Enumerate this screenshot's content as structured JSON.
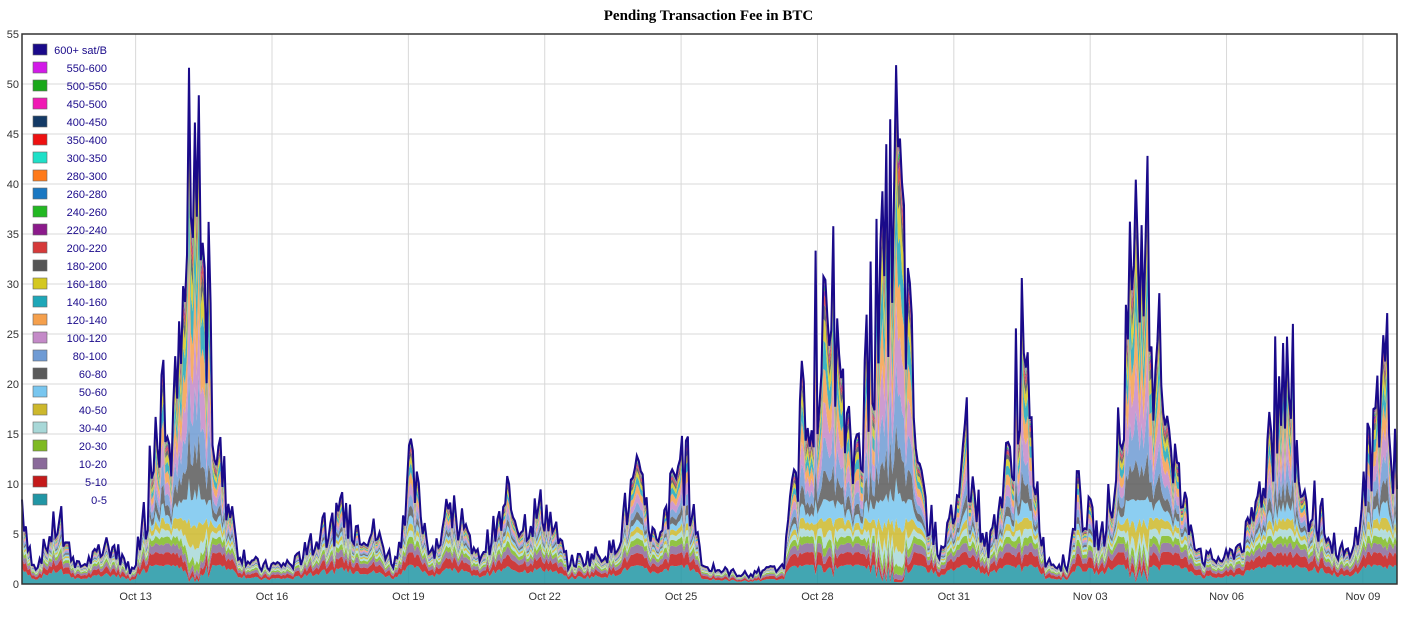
{
  "chart_data": {
    "type": "area",
    "title": "Pending Transaction Fee in BTC",
    "xlabel": "",
    "ylabel": "",
    "ylim": [
      0,
      55
    ],
    "yticks": [
      0,
      5,
      10,
      15,
      20,
      25,
      30,
      35,
      40,
      45,
      50,
      55
    ],
    "x_tick_labels": [
      "Oct 13",
      "Oct 16",
      "Oct 19",
      "Oct 22",
      "Oct 25",
      "Oct 28",
      "Oct 31",
      "Nov 03",
      "Nov 06",
      "Nov 09"
    ],
    "xlim": [
      "Oct 10 12:00",
      "Nov 09 18:00"
    ],
    "grid": true,
    "legend_position": "top-left",
    "stacked": true,
    "series": [
      {
        "name": "0-5",
        "color": "#2196a5"
      },
      {
        "name": "5-10",
        "color": "#c41a1a"
      },
      {
        "name": "10-20",
        "color": "#8a6a9a"
      },
      {
        "name": "20-30",
        "color": "#7fba22"
      },
      {
        "name": "30-40",
        "color": "#a8d8d8"
      },
      {
        "name": "40-50",
        "color": "#cdb82c"
      },
      {
        "name": "50-60",
        "color": "#78c6ef"
      },
      {
        "name": "60-80",
        "color": "#5a5a5a"
      },
      {
        "name": "80-100",
        "color": "#6f9bd4"
      },
      {
        "name": "100-120",
        "color": "#c48ac8"
      },
      {
        "name": "120-140",
        "color": "#f5a04c"
      },
      {
        "name": "140-160",
        "color": "#1ea7b8"
      },
      {
        "name": "160-180",
        "color": "#d4c820"
      },
      {
        "name": "180-200",
        "color": "#555555"
      },
      {
        "name": "200-220",
        "color": "#d63a3a"
      },
      {
        "name": "220-240",
        "color": "#8b1a8b"
      },
      {
        "name": "240-260",
        "color": "#22b822"
      },
      {
        "name": "260-280",
        "color": "#1a78c2"
      },
      {
        "name": "280-300",
        "color": "#ff7a1a"
      },
      {
        "name": "300-350",
        "color": "#1ee0c8"
      },
      {
        "name": "350-400",
        "color": "#ee1111"
      },
      {
        "name": "400-450",
        "color": "#143a66"
      },
      {
        "name": "450-500",
        "color": "#f01ab4"
      },
      {
        "name": "500-550",
        "color": "#1aa81a"
      },
      {
        "name": "550-600",
        "color": "#d21ae8"
      },
      {
        "name": "600+ sat/B",
        "color": "#1a0a8a"
      }
    ],
    "total_envelope": [
      {
        "x": "Oct 10 12:00",
        "y": 10
      },
      {
        "x": "Oct 10 18:00",
        "y": 1.5
      },
      {
        "x": "Oct 11 06:00",
        "y": 7
      },
      {
        "x": "Oct 11 18:00",
        "y": 2
      },
      {
        "x": "Oct 12 12:00",
        "y": 4.5
      },
      {
        "x": "Oct 12 22:00",
        "y": 1.5
      },
      {
        "x": "Oct 13 06:00",
        "y": 8
      },
      {
        "x": "Oct 13 12:00",
        "y": 20
      },
      {
        "x": "Oct 13 18:00",
        "y": 16
      },
      {
        "x": "Oct 14 00:00",
        "y": 26
      },
      {
        "x": "Oct 14 06:00",
        "y": 44
      },
      {
        "x": "Oct 14 08:00",
        "y": 46
      },
      {
        "x": "Oct 14 18:00",
        "y": 17
      },
      {
        "x": "Oct 15 06:00",
        "y": 4
      },
      {
        "x": "Oct 15 18:00",
        "y": 2
      },
      {
        "x": "Oct 16 12:00",
        "y": 2.5
      },
      {
        "x": "Oct 17 12:00",
        "y": 7.5
      },
      {
        "x": "Oct 18 06:00",
        "y": 6
      },
      {
        "x": "Oct 18 18:00",
        "y": 2
      },
      {
        "x": "Oct 19 00:00",
        "y": 14
      },
      {
        "x": "Oct 19 12:00",
        "y": 4
      },
      {
        "x": "Oct 20 00:00",
        "y": 8
      },
      {
        "x": "Oct 20 12:00",
        "y": 3
      },
      {
        "x": "Oct 21 06:00",
        "y": 9
      },
      {
        "x": "Oct 21 12:00",
        "y": 7
      },
      {
        "x": "Oct 22 00:00",
        "y": 9
      },
      {
        "x": "Oct 22 12:00",
        "y": 2.5
      },
      {
        "x": "Oct 23 12:00",
        "y": 4
      },
      {
        "x": "Oct 24 00:00",
        "y": 12
      },
      {
        "x": "Oct 24 12:00",
        "y": 4
      },
      {
        "x": "Oct 25 00:00",
        "y": 15.5
      },
      {
        "x": "Oct 25 12:00",
        "y": 2
      },
      {
        "x": "Oct 26 12:00",
        "y": 1
      },
      {
        "x": "Oct 27 06:00",
        "y": 2
      },
      {
        "x": "Oct 27 18:00",
        "y": 22
      },
      {
        "x": "Oct 28 06:00",
        "y": 30
      },
      {
        "x": "Oct 28 18:00",
        "y": 14
      },
      {
        "x": "Oct 29 06:00",
        "y": 27
      },
      {
        "x": "Oct 29 18:00",
        "y": 49
      },
      {
        "x": "Oct 30 06:00",
        "y": 11
      },
      {
        "x": "Oct 30 18:00",
        "y": 3
      },
      {
        "x": "Oct 31 06:00",
        "y": 15
      },
      {
        "x": "Oct 31 18:00",
        "y": 4
      },
      {
        "x": "Nov 01 06:00",
        "y": 15
      },
      {
        "x": "Nov 01 12:00",
        "y": 27
      },
      {
        "x": "Nov 02 00:00",
        "y": 3
      },
      {
        "x": "Nov 02 12:00",
        "y": 2
      },
      {
        "x": "Nov 02 18:00",
        "y": 10
      },
      {
        "x": "Nov 03 06:00",
        "y": 5
      },
      {
        "x": "Nov 03 18:00",
        "y": 20
      },
      {
        "x": "Nov 04 00:00",
        "y": 36
      },
      {
        "x": "Nov 04 12:00",
        "y": 28
      },
      {
        "x": "Nov 05 00:00",
        "y": 10
      },
      {
        "x": "Nov 05 12:00",
        "y": 3
      },
      {
        "x": "Nov 06 00:00",
        "y": 3
      },
      {
        "x": "Nov 06 12:00",
        "y": 6
      },
      {
        "x": "Nov 07 00:00",
        "y": 17
      },
      {
        "x": "Nov 07 06:00",
        "y": 26
      },
      {
        "x": "Nov 07 18:00",
        "y": 10
      },
      {
        "x": "Nov 08 06:00",
        "y": 5
      },
      {
        "x": "Nov 08 18:00",
        "y": 3
      },
      {
        "x": "Nov 09 06:00",
        "y": 18
      },
      {
        "x": "Nov 09 12:00",
        "y": 27
      },
      {
        "x": "Nov 09 18:00",
        "y": 10
      }
    ]
  }
}
